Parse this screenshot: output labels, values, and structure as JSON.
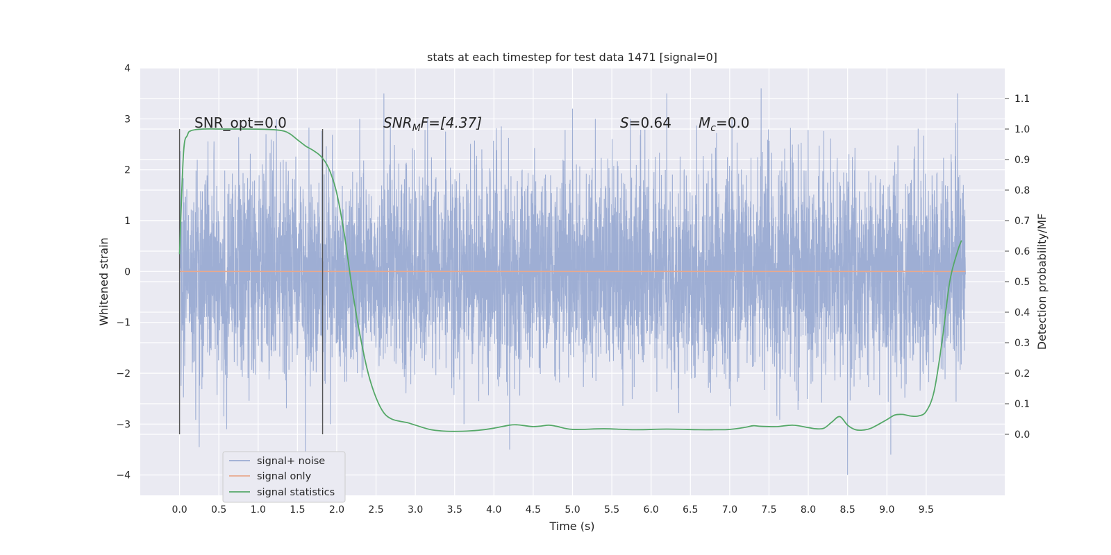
{
  "chart_data": {
    "type": "line",
    "title": "stats at each timestep for test data 1471 [signal=0]",
    "xlabel": "Time (s)",
    "ylabel": "Whitened strain",
    "ylabel_right": "Detection probability/MF",
    "xlim": [
      -0.5,
      10.5
    ],
    "ylim": [
      -4.4,
      4.0
    ],
    "ylim_right": [
      -0.2,
      1.2
    ],
    "x_ticks": [
      "0.0",
      "0.5",
      "1.0",
      "1.5",
      "2.0",
      "2.5",
      "3.0",
      "3.5",
      "4.0",
      "4.5",
      "5.0",
      "5.5",
      "6.0",
      "6.5",
      "7.0",
      "7.5",
      "8.0",
      "8.5",
      "9.0",
      "9.5"
    ],
    "y_ticks": [
      "4",
      "3",
      "2",
      "1",
      "0",
      "−1",
      "−2",
      "−3",
      "−4"
    ],
    "y_ticks_right": [
      "1.1",
      "1.0",
      "0.9",
      "0.8",
      "0.7",
      "0.6",
      "0.5",
      "0.4",
      "0.3",
      "0.2",
      "0.1",
      "0.0"
    ],
    "grid": true,
    "legend_position": "lower-left",
    "series": [
      {
        "name": "signal+ noise",
        "color": "#9aabd2",
        "axis": "left",
        "x_range": [
          0.0,
          10.0
        ],
        "typical_amplitude": 1.0,
        "peaks": [
          {
            "x": 0.25,
            "y": -3.45
          },
          {
            "x": 0.6,
            "y": -3.1
          },
          {
            "x": 1.1,
            "y": 2.7
          },
          {
            "x": 1.6,
            "y": -3.6
          },
          {
            "x": 2.6,
            "y": 3.5
          },
          {
            "x": 4.2,
            "y": -3.5
          },
          {
            "x": 5.0,
            "y": 3.2
          },
          {
            "x": 6.2,
            "y": 3.5
          },
          {
            "x": 7.4,
            "y": 3.6
          },
          {
            "x": 8.5,
            "y": -4.0
          },
          {
            "x": 9.05,
            "y": -3.6
          },
          {
            "x": 9.9,
            "y": 3.5
          }
        ]
      },
      {
        "name": "signal only",
        "color": "#e9a98d",
        "axis": "left",
        "x": [
          0.0,
          10.0
        ],
        "y": [
          0.0,
          0.0
        ]
      },
      {
        "name": "signal statistics",
        "color": "#55a868",
        "axis": "right",
        "x": [
          0.0,
          0.05,
          0.1,
          0.15,
          0.3,
          0.5,
          0.8,
          1.1,
          1.3,
          1.4,
          1.5,
          1.6,
          1.7,
          1.8,
          1.9,
          2.0,
          2.1,
          2.2,
          2.3,
          2.4,
          2.5,
          2.6,
          2.7,
          2.8,
          2.9,
          3.0,
          3.2,
          3.4,
          3.6,
          3.8,
          4.0,
          4.2,
          4.3,
          4.4,
          4.5,
          4.6,
          4.7,
          4.8,
          5.0,
          5.4,
          5.8,
          6.2,
          6.6,
          6.8,
          7.0,
          7.2,
          7.3,
          7.4,
          7.6,
          7.8,
          8.0,
          8.1,
          8.2,
          8.3,
          8.4,
          8.5,
          8.6,
          8.7,
          8.8,
          9.0,
          9.1,
          9.2,
          9.3,
          9.4,
          9.5,
          9.6,
          9.7,
          9.8,
          9.9,
          9.95
        ],
        "y": [
          0.59,
          0.92,
          0.98,
          0.995,
          1.0,
          1.0,
          1.0,
          0.999,
          0.995,
          0.985,
          0.965,
          0.945,
          0.93,
          0.91,
          0.87,
          0.79,
          0.65,
          0.47,
          0.32,
          0.2,
          0.12,
          0.07,
          0.05,
          0.043,
          0.038,
          0.03,
          0.015,
          0.01,
          0.01,
          0.013,
          0.02,
          0.03,
          0.031,
          0.028,
          0.025,
          0.027,
          0.03,
          0.026,
          0.016,
          0.018,
          0.015,
          0.017,
          0.015,
          0.015,
          0.016,
          0.023,
          0.028,
          0.026,
          0.025,
          0.03,
          0.022,
          0.018,
          0.02,
          0.04,
          0.058,
          0.03,
          0.015,
          0.014,
          0.02,
          0.048,
          0.063,
          0.065,
          0.06,
          0.06,
          0.075,
          0.14,
          0.3,
          0.5,
          0.6,
          0.635
        ]
      }
    ],
    "vlines": [
      {
        "x": 0.0,
        "ymin": -3.2,
        "ymax": 2.8,
        "color": "#555555"
      },
      {
        "x": 1.82,
        "ymin": -3.2,
        "ymax": 2.8,
        "color": "#555555"
      }
    ]
  },
  "annotations": {
    "snr_opt": "SNR_opt=0.0",
    "snr_mf_base": "SNR",
    "snr_mf_sub": "M",
    "snr_mf_rest": "F=[4.37]",
    "s_italic": "S",
    "s_value": "=0.64",
    "mc_italic": "M",
    "mc_sub": "c",
    "mc_value": "=0.0"
  }
}
